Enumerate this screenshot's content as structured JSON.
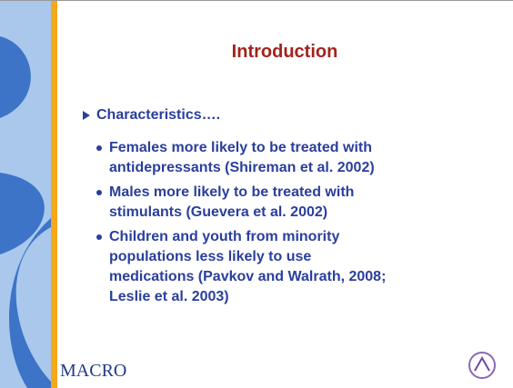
{
  "slide": {
    "title": "Introduction",
    "heading": "Characteristics….",
    "items": [
      {
        "lines": [
          "Females more likely to be treated with",
          "antidepressants (Shireman et al. 2002)"
        ]
      },
      {
        "lines": [
          "Males more likely to be treated with",
          "stimulants (Guevera et al. 2002)"
        ]
      },
      {
        "lines": [
          "Children and youth from minority",
          "populations less likely to use",
          "medications (Pavkov and Walrath, 2008;",
          "Leslie et al. 2003)"
        ]
      }
    ],
    "logo": "MACRO"
  }
}
